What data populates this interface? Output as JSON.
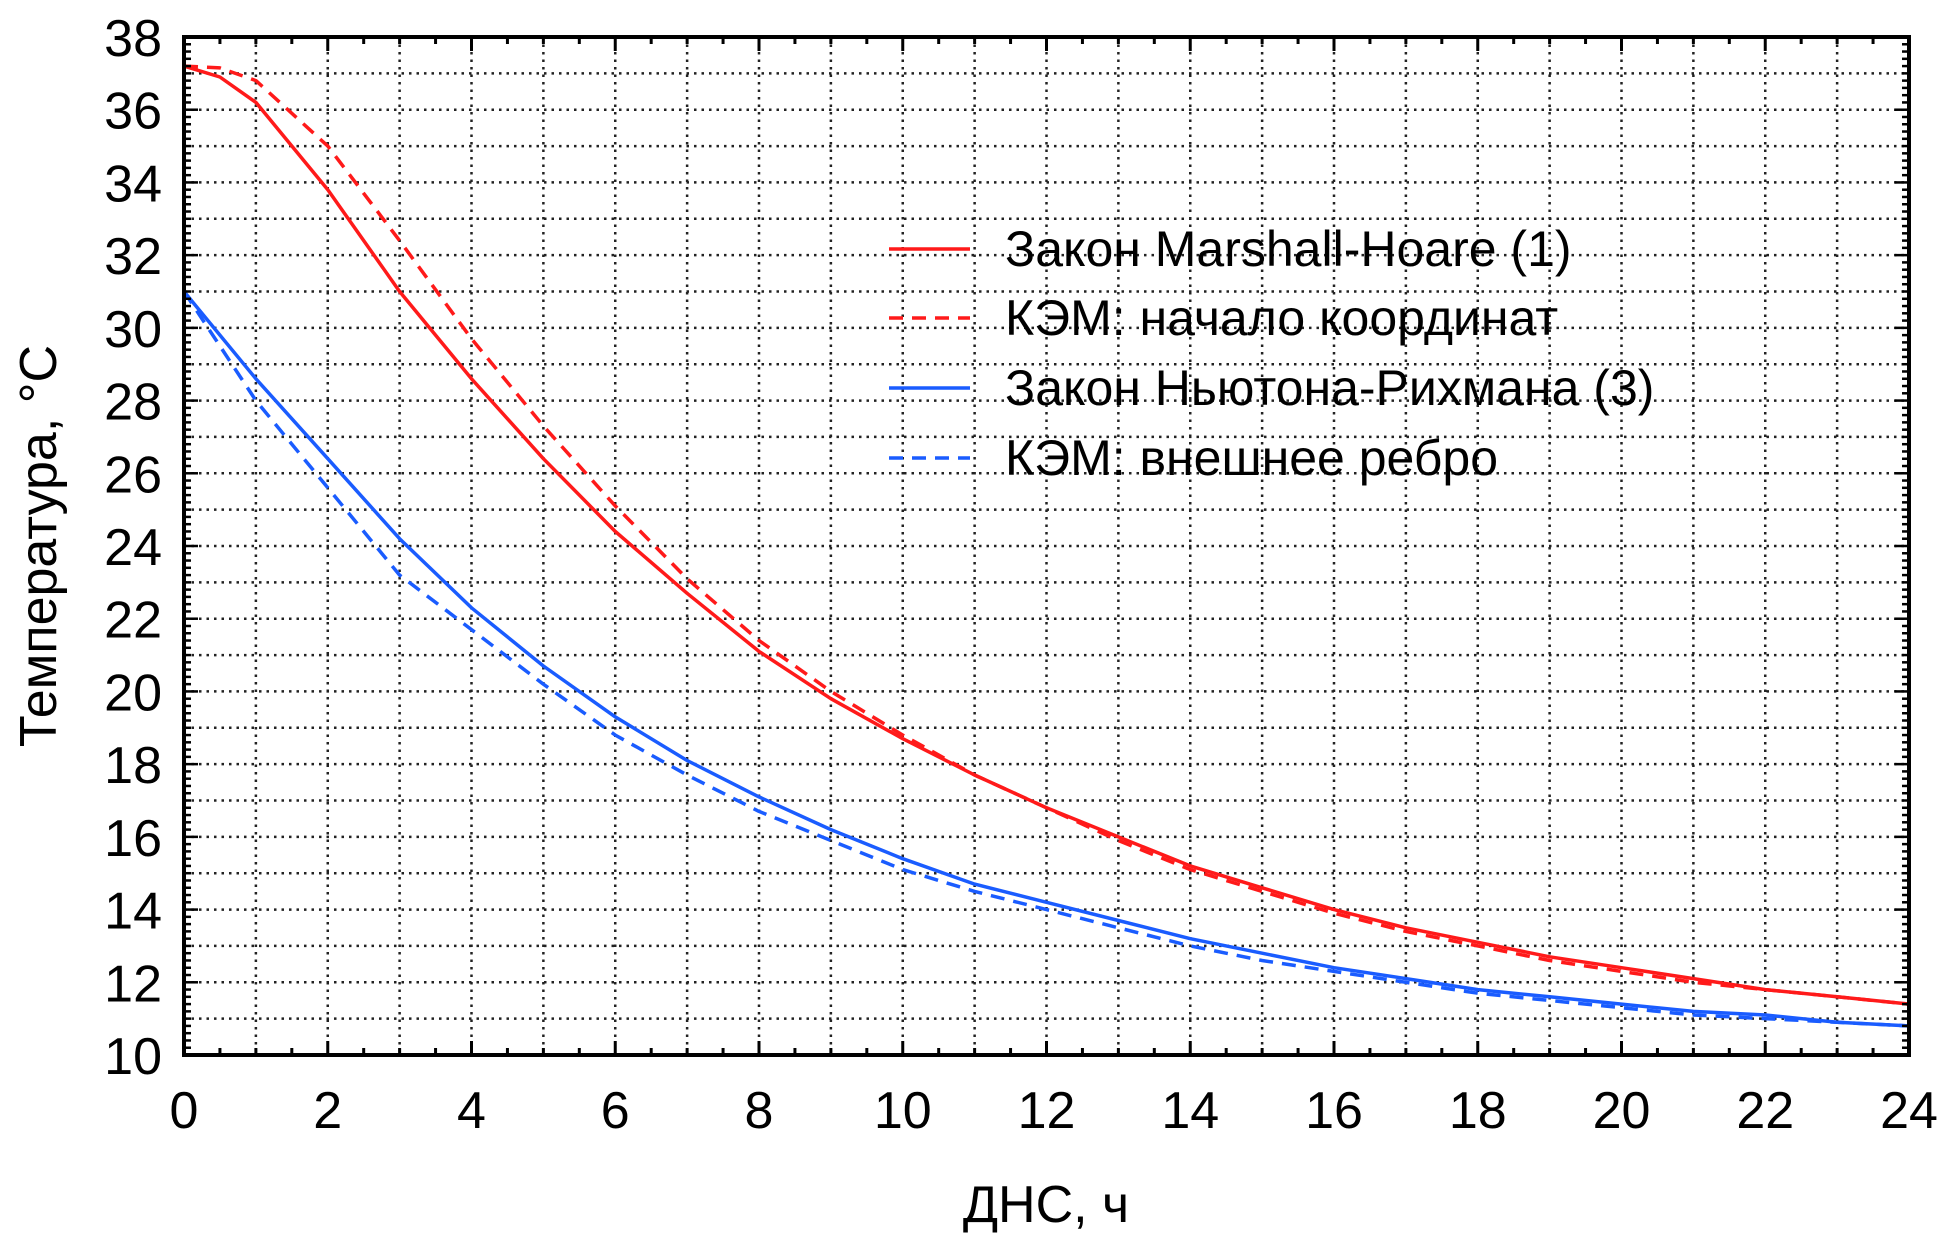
{
  "chart_data": {
    "type": "line",
    "title": "",
    "xlabel": "ДНС, ч",
    "ylabel": "Температура, °C",
    "ylabel_parts": {
      "text": "Температура, ",
      "superscript": "o",
      "unit": "C"
    },
    "xlim": [
      0,
      24
    ],
    "ylim": [
      10,
      38
    ],
    "x_ticks": [
      0,
      2,
      4,
      6,
      8,
      10,
      12,
      14,
      16,
      18,
      20,
      22,
      24
    ],
    "y_ticks": [
      10,
      12,
      14,
      16,
      18,
      20,
      22,
      24,
      26,
      28,
      30,
      32,
      34,
      36,
      38
    ],
    "grid": true,
    "legend_position": "top-right",
    "series": [
      {
        "name": "Закон Marshall-Hoare (1)",
        "color": "#ff1a1a",
        "style": "solid",
        "x": [
          0,
          0.5,
          1,
          2,
          3,
          4,
          5,
          6,
          7,
          8,
          9,
          10,
          11,
          12,
          13,
          14,
          15,
          16,
          17,
          18,
          19,
          20,
          21,
          22,
          23,
          24
        ],
        "y": [
          37.2,
          36.9,
          36.2,
          33.8,
          31.0,
          28.6,
          26.4,
          24.4,
          22.7,
          21.1,
          19.8,
          18.7,
          17.7,
          16.8,
          16.0,
          15.2,
          14.6,
          14.0,
          13.5,
          13.1,
          12.7,
          12.4,
          12.1,
          11.8,
          11.6,
          11.4
        ]
      },
      {
        "name": "КЭМ: начало координат",
        "color": "#ff1a1a",
        "style": "dashed",
        "x": [
          0,
          0.5,
          1,
          2,
          3,
          4,
          5,
          6,
          7,
          8,
          9,
          10,
          11,
          12,
          13,
          14,
          15,
          16,
          17,
          18,
          19,
          20,
          21,
          22,
          23,
          24
        ],
        "y": [
          37.2,
          37.15,
          36.8,
          35.0,
          32.4,
          29.7,
          27.3,
          25.1,
          23.1,
          21.4,
          20.0,
          18.8,
          17.7,
          16.8,
          15.9,
          15.1,
          14.5,
          13.9,
          13.4,
          13.0,
          12.6,
          12.3,
          12.0,
          11.8,
          11.6,
          11.4
        ]
      },
      {
        "name": "Закон Ньютона-Рихмана (3)",
        "color": "#1a5cff",
        "style": "solid",
        "x": [
          0,
          1,
          2,
          3,
          4,
          5,
          6,
          7,
          8,
          9,
          10,
          11,
          12,
          13,
          14,
          15,
          16,
          17,
          18,
          19,
          20,
          21,
          22,
          23,
          24
        ],
        "y": [
          31.0,
          28.6,
          26.4,
          24.2,
          22.3,
          20.7,
          19.3,
          18.1,
          17.1,
          16.2,
          15.4,
          14.7,
          14.2,
          13.7,
          13.2,
          12.8,
          12.4,
          12.1,
          11.8,
          11.6,
          11.4,
          11.2,
          11.1,
          10.9,
          10.8
        ]
      },
      {
        "name": "КЭМ: внешнее ребро",
        "color": "#1a5cff",
        "style": "dashed",
        "x": [
          0,
          1,
          2,
          3,
          4,
          5,
          6,
          7,
          8,
          9,
          10,
          11,
          12,
          13,
          14,
          15,
          16,
          17,
          18,
          19,
          20,
          21,
          22,
          23,
          24
        ],
        "y": [
          31.0,
          28.0,
          25.6,
          23.2,
          21.7,
          20.2,
          18.8,
          17.7,
          16.7,
          15.9,
          15.1,
          14.5,
          14.0,
          13.5,
          13.0,
          12.6,
          12.3,
          12.0,
          11.7,
          11.5,
          11.3,
          11.1,
          11.0,
          10.9,
          10.8
        ]
      }
    ]
  }
}
